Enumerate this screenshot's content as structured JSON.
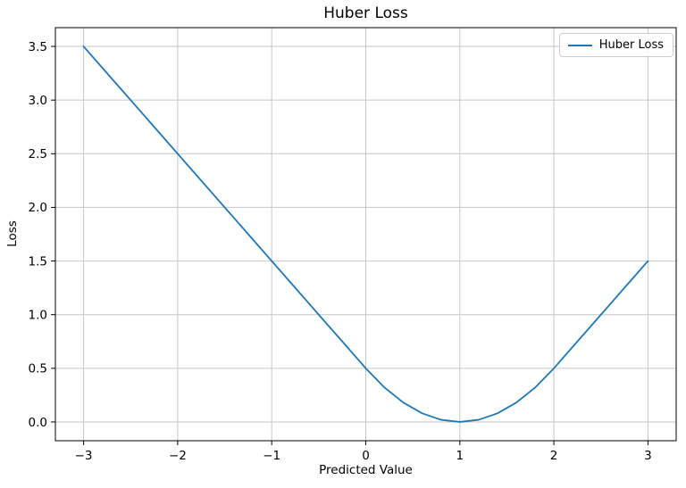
{
  "figure": {
    "background": "#ffffff"
  },
  "chart_data": {
    "type": "line",
    "title": "Huber Loss",
    "xlabel": "Predicted Value",
    "ylabel": "Loss",
    "xlim": [
      -3.3,
      3.3
    ],
    "ylim": [
      -0.175,
      3.675
    ],
    "grid": true,
    "xticks": {
      "values": [
        -3,
        -2,
        -1,
        0,
        1,
        2,
        3
      ],
      "labels": [
        "−3",
        "−2",
        "−1",
        "0",
        "1",
        "2",
        "3"
      ]
    },
    "yticks": {
      "values": [
        0,
        0.5,
        1.0,
        1.5,
        2.0,
        2.5,
        3.0,
        3.5
      ],
      "labels": [
        "0.0",
        "0.5",
        "1.0",
        "1.5",
        "2.0",
        "2.5",
        "3.0",
        "3.5"
      ]
    },
    "legend": {
      "position": "upper right",
      "entries": [
        "Huber Loss"
      ]
    },
    "series": [
      {
        "name": "Huber Loss",
        "color": "#1f77b4",
        "x": [
          -3.0,
          -2.8,
          -2.6,
          -2.4,
          -2.2,
          -2.0,
          -1.8,
          -1.6,
          -1.4,
          -1.2,
          -1.0,
          -0.8,
          -0.6,
          -0.4,
          -0.2,
          0.0,
          0.2,
          0.4,
          0.6,
          0.8,
          1.0,
          1.2,
          1.4,
          1.6,
          1.8,
          2.0,
          2.2,
          2.4,
          2.6,
          2.8,
          3.0
        ],
        "y": [
          3.5,
          3.3,
          3.1,
          2.9,
          2.7,
          2.5,
          2.3,
          2.1,
          1.9,
          1.7,
          1.5,
          1.3,
          1.1,
          0.9,
          0.7,
          0.5,
          0.32,
          0.18,
          0.08,
          0.02,
          0.0,
          0.02,
          0.08,
          0.18,
          0.32,
          0.5,
          0.7,
          0.9,
          1.1,
          1.3,
          1.5
        ]
      }
    ],
    "colors": {
      "grid": "#c6c6c6",
      "spine": "#000000",
      "text": "#000000"
    }
  }
}
